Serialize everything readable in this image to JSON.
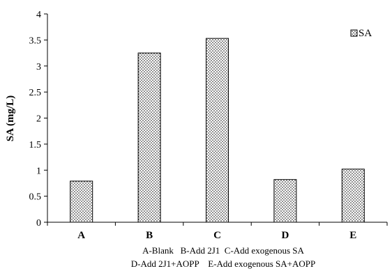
{
  "chart_data": {
    "type": "bar",
    "categories": [
      "A",
      "B",
      "C",
      "D",
      "E"
    ],
    "series": [
      {
        "name": "SA",
        "values": [
          0.79,
          3.25,
          3.53,
          0.82,
          1.02
        ]
      }
    ],
    "ylabel": "SA (mg/L)",
    "xlabel": "",
    "ylim": [
      0,
      4
    ],
    "yticks": [
      "0",
      "0.5",
      "1",
      "1.5",
      "2",
      "2.5",
      "3",
      "3.5",
      "4"
    ],
    "legend": {
      "entries": [
        "SA"
      ],
      "placement": "top-right"
    },
    "grid": false,
    "notes": [
      "A-Blank   B-Add 2J1  C-Add exogenous SA",
      "D-Add 2J1+AOPP    E-Add exogenous SA+AOPP"
    ],
    "colors": {
      "bar_fill": "#ffffff",
      "bar_dots": "#000000",
      "axis": "#000000"
    }
  }
}
